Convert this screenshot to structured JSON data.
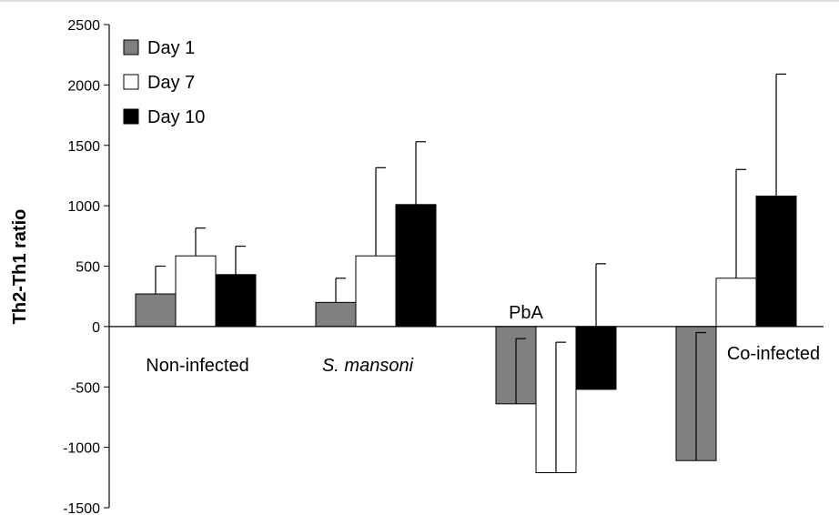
{
  "chart_data": {
    "type": "bar",
    "categories": [
      "Non-infected",
      "S. mansoni",
      "PbA",
      "Co-infected"
    ],
    "category_italic": [
      false,
      true,
      false,
      false
    ],
    "ylabel": "Th2-Th1 ratio",
    "xlabel": "",
    "ylim": [
      -1500,
      2500
    ],
    "yticks": [
      2500,
      2000,
      1500,
      1000,
      500,
      0,
      -500,
      -1000,
      -1500
    ],
    "grid": false,
    "legend_position": "top-left",
    "series": [
      {
        "name": "Day 1",
        "color": "#808080",
        "values": [
          270,
          200,
          -640,
          -1110
        ],
        "errors": [
          230,
          200,
          540,
          1060
        ]
      },
      {
        "name": "Day 7",
        "color": "#ffffff",
        "values": [
          585,
          585,
          -1210,
          400
        ],
        "errors": [
          230,
          730,
          1080,
          900
        ]
      },
      {
        "name": "Day 10",
        "color": "#000000",
        "values": [
          430,
          1010,
          -520,
          1080
        ],
        "errors": [
          235,
          520,
          1040,
          1010
        ]
      }
    ]
  }
}
